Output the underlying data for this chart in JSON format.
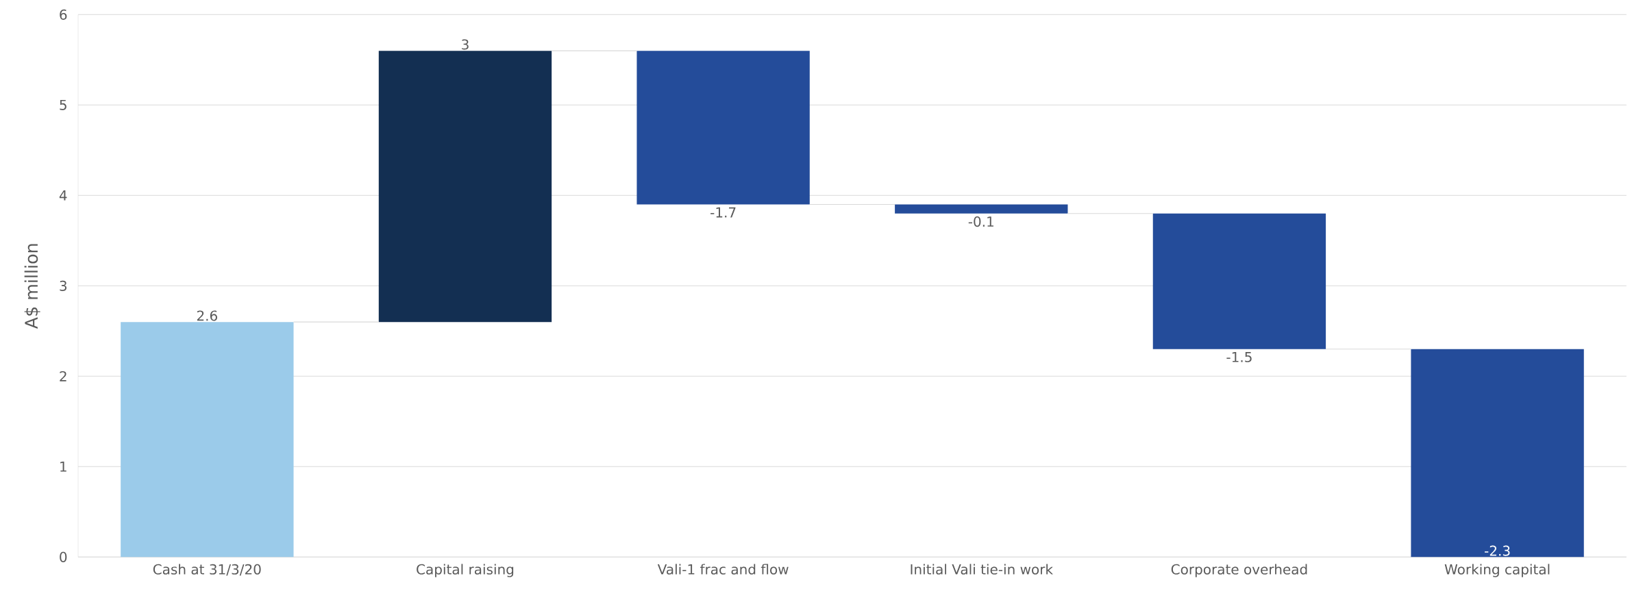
{
  "chart_data": {
    "type": "bar",
    "ylabel": "A$ million",
    "categories": [
      "Cash at 31/3/20",
      "Capital raising",
      "Vali-1 frac and flow",
      "Initial Vali tie-in work",
      "Corporate overhead",
      "Working capital"
    ],
    "values": [
      2.6,
      3,
      -1.7,
      -0.1,
      -1.5,
      -2.3
    ],
    "base": [
      0,
      2.6,
      5.6,
      3.9,
      3.8,
      2.3
    ],
    "colors": [
      "#9bcbea",
      "#132f52",
      "#244c9a",
      "#244c9a",
      "#244c9a",
      "#244c9a"
    ],
    "ylim": [
      0,
      6
    ],
    "yticks": [
      0,
      1,
      2,
      3,
      4,
      5,
      6
    ],
    "grid": "y",
    "data_labels": true
  }
}
